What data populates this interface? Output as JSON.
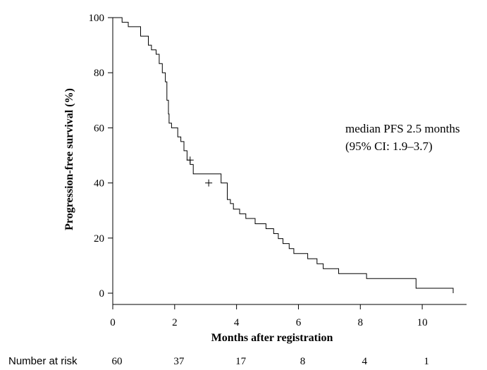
{
  "chart_data": {
    "type": "line",
    "subtype": "kaplan-meier-step",
    "xlabel": "Months after registration",
    "ylabel": "Progression-free survival (%)",
    "xlim": [
      0,
      11
    ],
    "ylim": [
      0,
      100
    ],
    "xticks": [
      "0",
      "2",
      "4",
      "6",
      "8",
      "10"
    ],
    "yticks": [
      "0",
      "20",
      "40",
      "60",
      "80",
      "100"
    ],
    "grid": false,
    "annotation": [
      "median PFS 2.5 months",
      "(95% CI: 1.9–3.7)"
    ],
    "series": [
      {
        "x": [
          0,
          0.3,
          0.5,
          0.9,
          1.15,
          1.25,
          1.4,
          1.5,
          1.6,
          1.7,
          1.75,
          1.8,
          1.82,
          1.86,
          1.9,
          2.1,
          2.2,
          2.3,
          2.4,
          2.5,
          2.6,
          3.5,
          3.7,
          3.8,
          3.9,
          4.1,
          4.3,
          4.6,
          4.95,
          5.2,
          5.35,
          5.5,
          5.7,
          5.85,
          6.3,
          6.6,
          6.8,
          7.3,
          8.2,
          9.8,
          11.0
        ],
        "y": [
          100,
          98.3,
          96.7,
          93.3,
          90.0,
          88.3,
          86.7,
          83.3,
          80.0,
          76.7,
          70.0,
          65.0,
          61.7,
          61.7,
          60.0,
          56.7,
          55.0,
          51.7,
          48.3,
          46.7,
          43.3,
          40.0,
          34.0,
          32.5,
          30.5,
          28.8,
          27.1,
          25.2,
          23.4,
          21.6,
          19.8,
          18.0,
          16.2,
          14.4,
          12.5,
          10.7,
          8.9,
          7.1,
          5.3,
          1.8,
          0
        ]
      }
    ],
    "censored": [
      {
        "x": 2.5,
        "y": 48.3
      },
      {
        "x": 3.1,
        "y": 40.0
      }
    ],
    "risk_table": {
      "label": "Number at risk",
      "x": [
        0,
        2,
        4,
        6,
        8,
        10
      ],
      "values": [
        "60",
        "37",
        "17",
        "8",
        "4",
        "1"
      ]
    }
  }
}
